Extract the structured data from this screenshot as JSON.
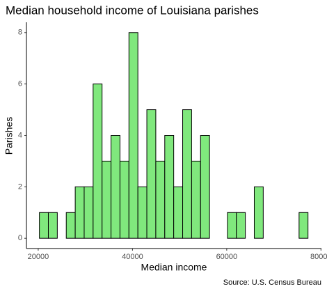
{
  "chart_data": {
    "type": "histogram",
    "title": "Median household income of Louisiana parishes",
    "x_label": "Median income",
    "y_label": "Parishes",
    "caption": "Source: U.S. Census Bureau",
    "bins": [
      20250,
      22150,
      24050,
      25950,
      27850,
      29750,
      31650,
      33550,
      35450,
      37350,
      39250,
      41150,
      43050,
      44950,
      46850,
      48750,
      50650,
      52550,
      54450,
      56350,
      58250,
      60150,
      62050,
      63950,
      65850,
      67750,
      69650,
      71550,
      73450,
      75350,
      77250
    ],
    "values": [
      1,
      1,
      0,
      1,
      2,
      2,
      6,
      3,
      4,
      3,
      8,
      2,
      5,
      3,
      4,
      2,
      5,
      3,
      4,
      0,
      0,
      1,
      1,
      0,
      2,
      0,
      0,
      0,
      0,
      1
    ],
    "color": "#80e87d",
    "edge_color": "#000000",
    "xlim": [
      17500,
      80100
    ],
    "xticks": [
      20000,
      40000,
      60000,
      80000
    ],
    "ylim": [
      -0.4,
      8.4
    ],
    "yticks": [
      0,
      2,
      4,
      6,
      8
    ],
    "grid": false
  }
}
